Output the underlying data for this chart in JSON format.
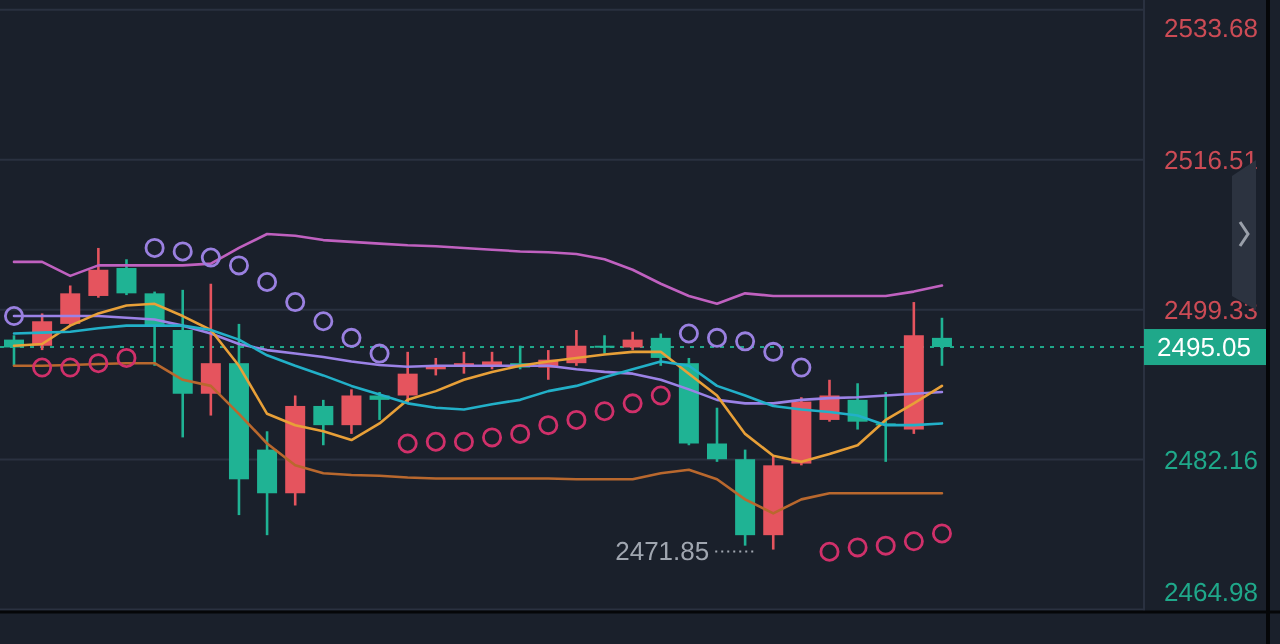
{
  "chart_data": {
    "type": "candlestick",
    "categories": [
      null,
      null,
      null,
      null,
      null,
      null,
      null,
      null,
      null,
      null,
      null,
      null,
      null,
      null,
      null,
      null,
      null,
      null,
      null,
      null,
      null,
      null,
      null,
      null,
      null,
      null,
      null,
      null,
      null,
      null,
      null,
      null,
      null,
      null
    ],
    "ohlc": [
      [
        2495.9,
        2496.4,
        2492.9,
        2495.0
      ],
      [
        2495.2,
        2498.9,
        2494.7,
        2498.0
      ],
      [
        2497.7,
        2502.1,
        2497.5,
        2501.2
      ],
      [
        2500.9,
        2506.4,
        2500.7,
        2503.9
      ],
      [
        2504.1,
        2505.1,
        2501.0,
        2501.2
      ],
      [
        2501.2,
        2501.4,
        2492.9,
        2497.5
      ],
      [
        2497.0,
        2501.6,
        2484.7,
        2489.7
      ],
      [
        2489.7,
        2502.3,
        2487.2,
        2493.2
      ],
      [
        2493.2,
        2497.7,
        2475.8,
        2479.9
      ],
      [
        2483.3,
        2485.4,
        2473.5,
        2478.3
      ],
      [
        2478.3,
        2489.5,
        2476.9,
        2488.3
      ],
      [
        2488.3,
        2489.0,
        2483.8,
        2486.1
      ],
      [
        2486.1,
        2490.2,
        2485.1,
        2489.5
      ],
      [
        2489.5,
        2489.9,
        2486.7,
        2489.0
      ],
      [
        2489.5,
        2494.5,
        2488.6,
        2492.0
      ],
      [
        2492.5,
        2493.8,
        2491.8,
        2492.9
      ],
      [
        2492.9,
        2494.5,
        2492.0,
        2493.2
      ],
      [
        2492.9,
        2494.5,
        2492.5,
        2493.4
      ],
      [
        2493.2,
        2495.2,
        2492.5,
        2492.7
      ],
      [
        2492.7,
        2494.7,
        2491.3,
        2493.6
      ],
      [
        2493.2,
        2497.0,
        2492.9,
        2495.2
      ],
      [
        2495.2,
        2496.4,
        2494.3,
        2495.0
      ],
      [
        2495.0,
        2496.8,
        2494.7,
        2495.9
      ],
      [
        2496.1,
        2496.6,
        2492.9,
        2493.8
      ],
      [
        2493.2,
        2493.8,
        2483.8,
        2484.0
      ],
      [
        2484.0,
        2488.1,
        2481.9,
        2482.2
      ],
      [
        2482.2,
        2483.3,
        2472.3,
        2473.5
      ],
      [
        2473.5,
        2482.6,
        2471.85,
        2481.5
      ],
      [
        2481.7,
        2489.3,
        2481.5,
        2488.8
      ],
      [
        2486.7,
        2491.3,
        2486.5,
        2489.5
      ],
      [
        2489.0,
        2490.9,
        2485.6,
        2486.5
      ],
      [
        2486.3,
        2489.9,
        2481.9,
        2486.1
      ],
      [
        2485.6,
        2500.2,
        2485.1,
        2496.4
      ],
      [
        2496.1,
        2498.4,
        2492.9,
        2495.05
      ]
    ],
    "colors": [
      "#1fb394",
      "#e5545e",
      "#e5545e",
      "#e5545e",
      "#1fb394",
      "#1fb394",
      "#1fb394",
      "#e5545e",
      "#1fb394",
      "#1fb394",
      "#e5545e",
      "#1fb394",
      "#e5545e",
      "#1fb394",
      "#e5545e",
      "#e5545e",
      "#e5545e",
      "#e5545e",
      "#1fb394",
      "#e5545e",
      "#e5545e",
      "#1fb394",
      "#e5545e",
      "#1fb394",
      "#1fb394",
      "#1fb394",
      "#1fb394",
      "#e5545e",
      "#e5545e",
      "#e5545e",
      "#1fb394",
      "#1fb394",
      "#e5545e",
      "#1fb394"
    ],
    "series": [
      {
        "type": "line",
        "color": "#c061c0",
        "values": [
          2504.8,
          2504.8,
          2503.2,
          2504.4,
          2504.4,
          2504.4,
          2504.4,
          2504.6,
          2506.4,
          2508.0,
          2507.8,
          2507.3,
          2507.1,
          2506.9,
          2506.7,
          2506.6,
          2506.4,
          2506.2,
          2506.0,
          2505.9,
          2505.7,
          2505.1,
          2503.9,
          2502.3,
          2500.9,
          2500.0,
          2501.2,
          2500.9,
          2500.9,
          2500.9,
          2500.9,
          2500.9,
          2501.4,
          2502.1
        ]
      },
      {
        "type": "line",
        "color": "#9b82e6",
        "values": [
          2498.6,
          2498.6,
          2498.6,
          2498.6,
          2498.4,
          2498.2,
          2497.5,
          2496.6,
          2495.4,
          2494.7,
          2494.3,
          2493.9,
          2493.4,
          2493.0,
          2492.8,
          2492.9,
          2492.9,
          2492.9,
          2492.9,
          2492.9,
          2492.5,
          2492.2,
          2492.0,
          2491.3,
          2490.2,
          2489.0,
          2488.6,
          2488.6,
          2489.0,
          2489.2,
          2489.3,
          2489.5,
          2489.7,
          2489.9
        ]
      },
      {
        "type": "line",
        "color": "#b9682e",
        "values": [
          2492.9,
          2492.9,
          2493.0,
          2493.1,
          2493.2,
          2493.2,
          2491.3,
          2490.6,
          2487.4,
          2484.0,
          2481.5,
          2480.6,
          2480.4,
          2480.3,
          2480.1,
          2480.0,
          2480.0,
          2480.0,
          2480.0,
          2480.0,
          2479.9,
          2479.9,
          2479.9,
          2480.6,
          2481.0,
          2479.9,
          2477.6,
          2476.0,
          2477.6,
          2478.3,
          2478.3,
          2478.3,
          2478.3,
          2478.3
        ]
      },
      {
        "type": "line",
        "color": "#e8a038",
        "values": [
          2495.2,
          2495.4,
          2497.5,
          2498.9,
          2499.8,
          2500.0,
          2498.6,
          2497.0,
          2492.9,
          2487.4,
          2486.1,
          2485.4,
          2484.4,
          2486.3,
          2489.0,
          2490.0,
          2491.3,
          2492.2,
          2492.9,
          2493.4,
          2493.8,
          2494.2,
          2494.5,
          2494.5,
          2492.0,
          2489.5,
          2485.1,
          2482.6,
          2481.9,
          2482.8,
          2483.8,
          2486.7,
          2488.6,
          2490.6
        ]
      },
      {
        "type": "line",
        "color": "#22b0c8",
        "values": [
          2496.6,
          2496.7,
          2496.8,
          2497.2,
          2497.5,
          2497.5,
          2497.5,
          2497.0,
          2495.9,
          2494.1,
          2492.9,
          2491.8,
          2490.6,
          2489.6,
          2488.6,
          2488.1,
          2487.9,
          2488.5,
          2489.0,
          2490.0,
          2490.6,
          2491.6,
          2492.5,
          2493.4,
          2492.9,
          2490.6,
          2489.5,
          2488.3,
          2487.9,
          2487.6,
          2487.2,
          2486.1,
          2486.1,
          2486.3
        ]
      },
      {
        "type": "scatter",
        "marker": "circle",
        "color": "#9a80e0",
        "values": [
          2498.6,
          null,
          null,
          null,
          null,
          2506.4,
          2506.0,
          2505.3,
          2504.4,
          2502.5,
          2500.2,
          2498.0,
          2496.1,
          2494.3,
          null,
          null,
          null,
          null,
          null,
          null,
          null,
          null,
          null,
          null,
          2496.6,
          2496.1,
          2495.7,
          2494.5,
          2492.7,
          null,
          null,
          null,
          null,
          null
        ]
      },
      {
        "type": "scatter",
        "marker": "circle",
        "color": "#d0306a",
        "values": [
          null,
          2492.7,
          2492.7,
          2493.2,
          2493.8,
          null,
          null,
          null,
          null,
          null,
          null,
          null,
          null,
          null,
          2484.0,
          2484.2,
          2484.2,
          2484.7,
          2485.1,
          2486.1,
          2486.7,
          2487.7,
          2488.6,
          2489.5,
          null,
          null,
          null,
          null,
          null,
          2471.6,
          2472.1,
          2472.3,
          2472.8,
          2473.7
        ]
      }
    ],
    "ylim": [
      2464.7,
      2534.8
    ],
    "yticks": [
      2464.98,
      2482.16,
      2499.33,
      2516.51,
      2533.68
    ],
    "grid": "y",
    "ref_lines": [
      {
        "axis": "y",
        "value": 2495.05,
        "label": "2495.05",
        "color": "#1fa88a",
        "line_style": "dotted"
      }
    ],
    "annotations": [
      "2471.85"
    ]
  }
}
